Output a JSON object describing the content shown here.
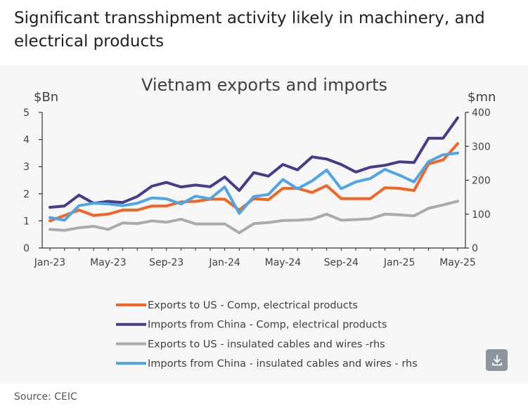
{
  "headline": "Significant transshipment activity likely in machinery, and electrical products",
  "source": "Source: CEIC",
  "download": {
    "icon": "download-icon"
  },
  "chart_data": {
    "type": "line",
    "title": "Vietnam exports and imports",
    "ylabel_left": "$Bn",
    "ylabel_right": "$mn",
    "ylim_left": [
      0,
      5
    ],
    "ylim_right": [
      0,
      400
    ],
    "yticks_left": [
      "0",
      "1",
      "2",
      "3",
      "4",
      "5"
    ],
    "yticks_right": [
      "0",
      "100",
      "200",
      "300",
      "400"
    ],
    "x": [
      "Jan-23",
      "Feb-23",
      "Mar-23",
      "Apr-23",
      "May-23",
      "Jun-23",
      "Jul-23",
      "Aug-23",
      "Sep-23",
      "Oct-23",
      "Nov-23",
      "Dec-23",
      "Jan-24",
      "Feb-24",
      "Mar-24",
      "Apr-24",
      "May-24",
      "Jun-24",
      "Jul-24",
      "Aug-24",
      "Sep-24",
      "Oct-24",
      "Nov-24",
      "Dec-24",
      "Jan-25",
      "Feb-25",
      "Mar-25",
      "Apr-25",
      "May-25"
    ],
    "xtick_labels": [
      "Jan-23",
      "May-23",
      "Sep-23",
      "Jan-24",
      "May-24",
      "Sep-24",
      "Jan-25",
      "May-25"
    ],
    "grid": false,
    "legend_position": "bottom",
    "series": [
      {
        "name": "Exports to US - Comp, electrical products",
        "axis": "left",
        "color": "#f26522",
        "values": [
          1.0,
          1.2,
          1.4,
          1.2,
          1.25,
          1.4,
          1.4,
          1.55,
          1.55,
          1.7,
          1.72,
          1.8,
          1.8,
          1.4,
          1.82,
          1.78,
          2.2,
          2.2,
          2.05,
          2.3,
          1.82,
          1.82,
          1.82,
          2.22,
          2.2,
          2.12,
          3.1,
          3.25,
          3.85
        ]
      },
      {
        "name": "Imports from China - Comp, electrical products",
        "axis": "left",
        "color": "#473c8b",
        "values": [
          1.5,
          1.55,
          1.95,
          1.65,
          1.72,
          1.68,
          1.9,
          2.28,
          2.42,
          2.25,
          2.32,
          2.26,
          2.62,
          2.12,
          2.78,
          2.65,
          3.08,
          2.88,
          3.36,
          3.28,
          3.08,
          2.8,
          2.98,
          3.05,
          3.18,
          3.15,
          4.05,
          4.05,
          4.8
        ]
      },
      {
        "name": "Exports to US - insulated cables and wires -rhs",
        "axis": "right",
        "color": "#ababab",
        "values": [
          55,
          52,
          60,
          64,
          55,
          74,
          72,
          80,
          76,
          85,
          71,
          71,
          71,
          45,
          72,
          75,
          81,
          82,
          85,
          100,
          82,
          84,
          86,
          100,
          98,
          95,
          117,
          127,
          138
        ]
      },
      {
        "name": "Imports from China - insulated cables and wires - rhs",
        "axis": "right",
        "color": "#4ea6e6",
        "values": [
          90,
          82,
          125,
          132,
          130,
          125,
          132,
          148,
          145,
          130,
          153,
          145,
          180,
          102,
          152,
          158,
          202,
          175,
          198,
          230,
          175,
          195,
          205,
          232,
          215,
          195,
          255,
          275,
          280
        ]
      }
    ]
  }
}
